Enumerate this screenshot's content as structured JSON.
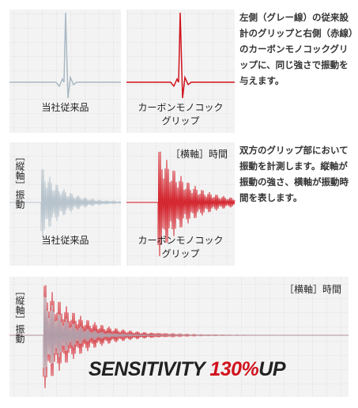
{
  "panels": [
    {
      "label": "当社従来品"
    },
    {
      "label_lines": [
        "カーボンモノコック",
        "グリップ"
      ]
    },
    {
      "y_axis_label": "［縦軸］振動",
      "label": "当社従来品"
    },
    {
      "x_axis_label": "［横軸］時間",
      "label_lines": [
        "カーボンモノコック",
        "グリップ"
      ]
    },
    {
      "y_axis_label": "［縦軸］振動",
      "x_axis_label": "［横軸］時間"
    }
  ],
  "descriptions": [
    "左側（グレー線）の従来設計のグリップと右側（赤線）のカーボンモノコックグリップに、同じ強さで振動を与えます。",
    "双方のグリップ部において振動を計測します。縦軸が振動の強さ、横軸が振動時間を表します。"
  ],
  "headline": {
    "word": "SENSITIVITY",
    "figure": "130%",
    "suffix": "UP"
  }
}
